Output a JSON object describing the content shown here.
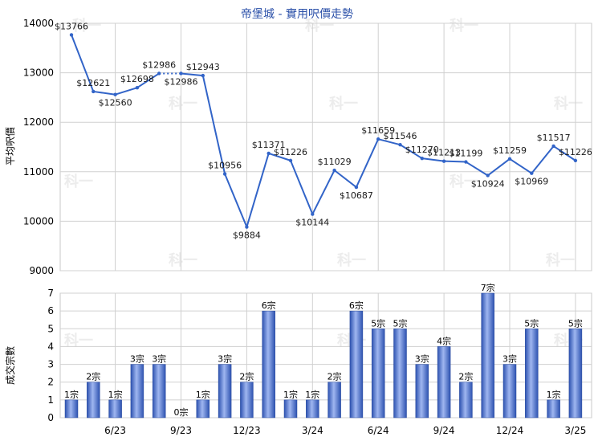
{
  "title": "帝堡城 - 實用呎價走勢",
  "watermark": "科一",
  "colors": {
    "line": "#3264c8",
    "title": "#2a4fa8",
    "grid": "#d0d0d0",
    "bar_dark": "#2d52b0",
    "bar_light": "#9fb6f0"
  },
  "chart_data": [
    {
      "type": "line",
      "title": "帝堡城 - 實用呎價走勢",
      "ylabel": "平均呎價",
      "ylim": [
        9000,
        14000
      ],
      "yticks": [
        9000,
        10000,
        11000,
        12000,
        13000,
        14000
      ],
      "grid": true,
      "point_labels": [
        "$13766",
        "$12621",
        "$12560",
        "$12698",
        "$12986",
        "$12986",
        "$12943",
        "$10956",
        "$9884",
        "$11371",
        "$11226",
        "$10144",
        "$11029",
        "$10687",
        "$11659",
        "$11546",
        "$11270",
        "$11213",
        "$11199",
        "$10924",
        "$11259",
        "$10969",
        "$11517",
        "$11226"
      ],
      "values": [
        13766,
        12621,
        12560,
        12698,
        12986,
        12986,
        12943,
        10956,
        9884,
        11371,
        11226,
        10144,
        11029,
        10687,
        11659,
        11546,
        11270,
        11213,
        11199,
        10924,
        11259,
        10969,
        11517,
        11226
      ],
      "dotted_segments": [
        [
          4,
          5
        ]
      ]
    },
    {
      "type": "bar",
      "ylabel": "成交宗數",
      "ylim": [
        0,
        7
      ],
      "yticks": [
        0,
        1,
        2,
        3,
        4,
        5,
        6,
        7
      ],
      "grid": true,
      "value_labels": [
        "1宗",
        "2宗",
        "1宗",
        "3宗",
        "3宗",
        "0宗",
        "1宗",
        "3宗",
        "2宗",
        "6宗",
        "1宗",
        "1宗",
        "2宗",
        "6宗",
        "5宗",
        "5宗",
        "3宗",
        "4宗",
        "2宗",
        "7宗",
        "3宗",
        "5宗",
        "1宗",
        "5宗"
      ],
      "values": [
        1,
        2,
        1,
        3,
        3,
        0,
        1,
        3,
        2,
        6,
        1,
        1,
        2,
        6,
        5,
        5,
        3,
        4,
        2,
        7,
        3,
        5,
        1,
        5
      ],
      "x_tick_labels": [
        "6/23",
        "9/23",
        "12/23",
        "3/24",
        "6/24",
        "9/24",
        "12/24",
        "3/25"
      ]
    }
  ]
}
